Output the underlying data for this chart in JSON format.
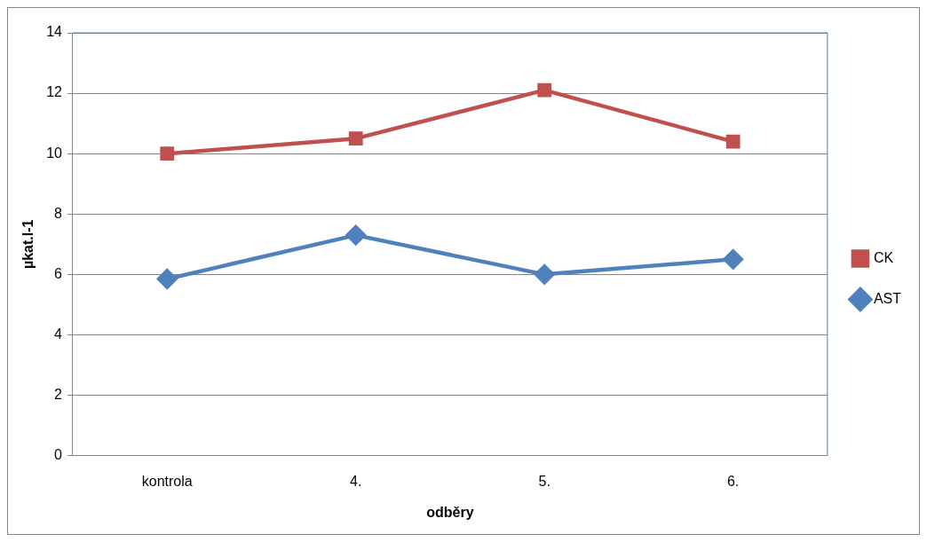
{
  "chart_data": {
    "type": "line",
    "xlabel": "odběry",
    "ylabel": "µkat.l-1",
    "categories": [
      "kontrola",
      "4.",
      "5.",
      "6."
    ],
    "series": [
      {
        "name": "CK",
        "color": "#c0504d",
        "marker": "square",
        "values": [
          10.0,
          10.5,
          12.1,
          10.4
        ]
      },
      {
        "name": "AST",
        "color": "#4f81bd",
        "marker": "diamond",
        "values": [
          5.85,
          7.3,
          6.0,
          6.5
        ]
      }
    ],
    "ylim": [
      0,
      14
    ],
    "yticks": [
      0,
      2,
      4,
      6,
      8,
      10,
      12,
      14
    ],
    "grid": "y",
    "legend": "right",
    "line_style": "solid"
  }
}
